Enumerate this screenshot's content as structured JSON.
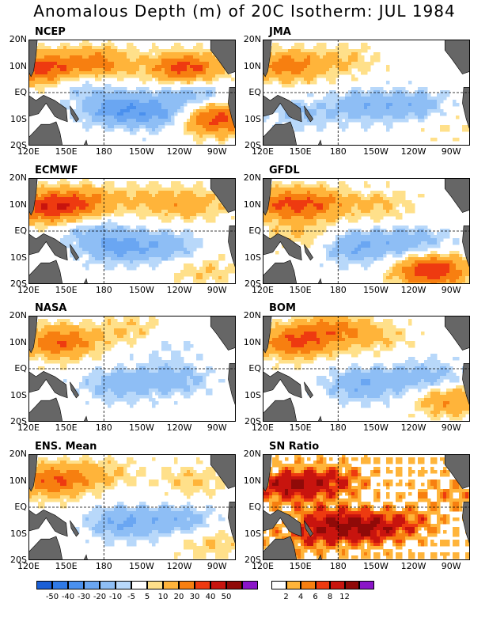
{
  "title": "Anomalous Depth (m) of 20C Isotherm: JUL 1984",
  "axes": {
    "lat_labels": [
      "20N",
      "10N",
      "EQ",
      "10S",
      "20S"
    ],
    "lon_labels": [
      "120E",
      "150E",
      "180",
      "150W",
      "120W",
      "90W"
    ]
  },
  "chart_data": [
    {
      "type": "heatmap",
      "title": "NCEP",
      "xlabels": [
        "120E",
        "150E",
        "180",
        "150W",
        "120W",
        "90W"
      ],
      "ylabels": [
        "20N",
        "10N",
        "EQ",
        "10S",
        "20S"
      ],
      "features": [
        {
          "lon": 130,
          "lat": 9,
          "value": 35
        },
        {
          "lon": 175,
          "lat": 11,
          "value": 25
        },
        {
          "lon": 245,
          "lat": 9,
          "value": 35
        },
        {
          "lon": 268,
          "lat": -10,
          "value": 35
        },
        {
          "lon": 190,
          "lat": -6,
          "value": -25
        },
        {
          "lon": 225,
          "lat": -8,
          "value": -20
        },
        {
          "lon": 160,
          "lat": 4,
          "value": -10
        },
        {
          "lon": 250,
          "lat": 0,
          "value": -15
        }
      ]
    },
    {
      "type": "heatmap",
      "title": "JMA",
      "xlabels": [
        "120E",
        "150E",
        "180",
        "150W",
        "120W",
        "90W"
      ],
      "ylabels": [
        "20N",
        "10N",
        "EQ",
        "10S",
        "20S"
      ],
      "features": [
        {
          "lon": 140,
          "lat": 10,
          "value": 25
        },
        {
          "lon": 185,
          "lat": 12,
          "value": 10
        },
        {
          "lon": 200,
          "lat": -5,
          "value": -15
        },
        {
          "lon": 150,
          "lat": -8,
          "value": -10
        },
        {
          "lon": 240,
          "lat": -5,
          "value": -15
        },
        {
          "lon": 265,
          "lat": -12,
          "value": 5
        }
      ]
    },
    {
      "type": "heatmap",
      "title": "ECMWF",
      "xlabels": [
        "120E",
        "150E",
        "180",
        "150W",
        "120W",
        "90W"
      ],
      "ylabels": [
        "20N",
        "10N",
        "EQ",
        "10S",
        "20S"
      ],
      "features": [
        {
          "lon": 135,
          "lat": 9,
          "value": 35
        },
        {
          "lon": 165,
          "lat": 11,
          "value": 20
        },
        {
          "lon": 215,
          "lat": 12,
          "value": 10
        },
        {
          "lon": 250,
          "lat": 10,
          "value": 15
        },
        {
          "lon": 190,
          "lat": -6,
          "value": -20
        },
        {
          "lon": 230,
          "lat": -6,
          "value": -15
        },
        {
          "lon": 170,
          "lat": 0,
          "value": -10
        },
        {
          "lon": 260,
          "lat": -15,
          "value": 10
        }
      ]
    },
    {
      "type": "heatmap",
      "title": "GFDL",
      "xlabels": [
        "120E",
        "150E",
        "180",
        "150W",
        "120W",
        "90W"
      ],
      "ylabels": [
        "20N",
        "10N",
        "EQ",
        "10S",
        "20S"
      ],
      "features": [
        {
          "lon": 135,
          "lat": 10,
          "value": 25
        },
        {
          "lon": 165,
          "lat": 10,
          "value": 20
        },
        {
          "lon": 215,
          "lat": 10,
          "value": 10
        },
        {
          "lon": 255,
          "lat": -15,
          "value": 40
        },
        {
          "lon": 195,
          "lat": -6,
          "value": -20
        },
        {
          "lon": 240,
          "lat": -4,
          "value": -15
        },
        {
          "lon": 150,
          "lat": -2,
          "value": 10
        }
      ]
    },
    {
      "type": "heatmap",
      "title": "NASA",
      "xlabels": [
        "120E",
        "150E",
        "180",
        "150W",
        "120W",
        "90W"
      ],
      "ylabels": [
        "20N",
        "10N",
        "EQ",
        "10S",
        "20S"
      ],
      "features": [
        {
          "lon": 145,
          "lat": 10,
          "value": 30
        },
        {
          "lon": 200,
          "lat": 15,
          "value": 10
        },
        {
          "lon": 190,
          "lat": -6,
          "value": -15
        },
        {
          "lon": 235,
          "lat": -4,
          "value": -15
        },
        {
          "lon": 230,
          "lat": 8,
          "value": -5
        }
      ]
    },
    {
      "type": "heatmap",
      "title": "BOM",
      "xlabels": [
        "120E",
        "150E",
        "180",
        "150W",
        "120W",
        "90W"
      ],
      "ylabels": [
        "20N",
        "10N",
        "EQ",
        "10S",
        "20S"
      ],
      "features": [
        {
          "lon": 145,
          "lat": 10,
          "value": 30
        },
        {
          "lon": 175,
          "lat": 15,
          "value": 20
        },
        {
          "lon": 210,
          "lat": 12,
          "value": 10
        },
        {
          "lon": 200,
          "lat": -6,
          "value": -20
        },
        {
          "lon": 250,
          "lat": -3,
          "value": -15
        },
        {
          "lon": 270,
          "lat": -12,
          "value": 20
        }
      ]
    },
    {
      "type": "heatmap",
      "title": "ENS. Mean",
      "xlabels": [
        "120E",
        "150E",
        "180",
        "150W",
        "120W",
        "90W"
      ],
      "ylabels": [
        "20N",
        "10N",
        "EQ",
        "10S",
        "20S"
      ],
      "features": [
        {
          "lon": 140,
          "lat": 10,
          "value": 30
        },
        {
          "lon": 180,
          "lat": 13,
          "value": 10
        },
        {
          "lon": 250,
          "lat": 10,
          "value": 10
        },
        {
          "lon": 195,
          "lat": -6,
          "value": -20
        },
        {
          "lon": 240,
          "lat": -5,
          "value": -15
        },
        {
          "lon": 265,
          "lat": -14,
          "value": 10
        }
      ]
    },
    {
      "type": "heatmap",
      "title": "SN Ratio",
      "xlabels": [
        "120E",
        "150E",
        "180",
        "150W",
        "120W",
        "90W"
      ],
      "ylabels": [
        "20N",
        "10N",
        "EQ",
        "10S",
        "20S"
      ],
      "features": [
        {
          "lon": 140,
          "lat": 8,
          "value": 12
        },
        {
          "lon": 175,
          "lat": 10,
          "value": 8
        },
        {
          "lon": 200,
          "lat": -8,
          "value": 12
        },
        {
          "lon": 170,
          "lat": -5,
          "value": 8
        },
        {
          "lon": 155,
          "lat": -12,
          "value": 6
        },
        {
          "lon": 235,
          "lat": -6,
          "value": 6
        },
        {
          "lon": 270,
          "lat": 5,
          "value": 4
        }
      ]
    }
  ],
  "colorbar_anomaly": {
    "labels": [
      "-50",
      "-40",
      "-30",
      "-20",
      "-10",
      "-5",
      "5",
      "10",
      "20",
      "30",
      "40",
      "50"
    ],
    "colors": [
      "#1a5fd6",
      "#2f79e6",
      "#4a90ee",
      "#6aa6f2",
      "#8ebef5",
      "#b8d8fa",
      "#ffffff",
      "#ffe08a",
      "#ffb43a",
      "#f77f10",
      "#ee3a10",
      "#c8140e",
      "#900a08",
      "#8a14c8"
    ]
  },
  "colorbar_ratio": {
    "labels": [
      "2",
      "4",
      "6",
      "8",
      "12"
    ],
    "colors": [
      "#ffffff",
      "#ffb43a",
      "#f77f10",
      "#ee3a10",
      "#c8140e",
      "#900a08",
      "#8a14c8"
    ]
  },
  "colors": {
    "land": "#666666",
    "dash": "#000000"
  }
}
